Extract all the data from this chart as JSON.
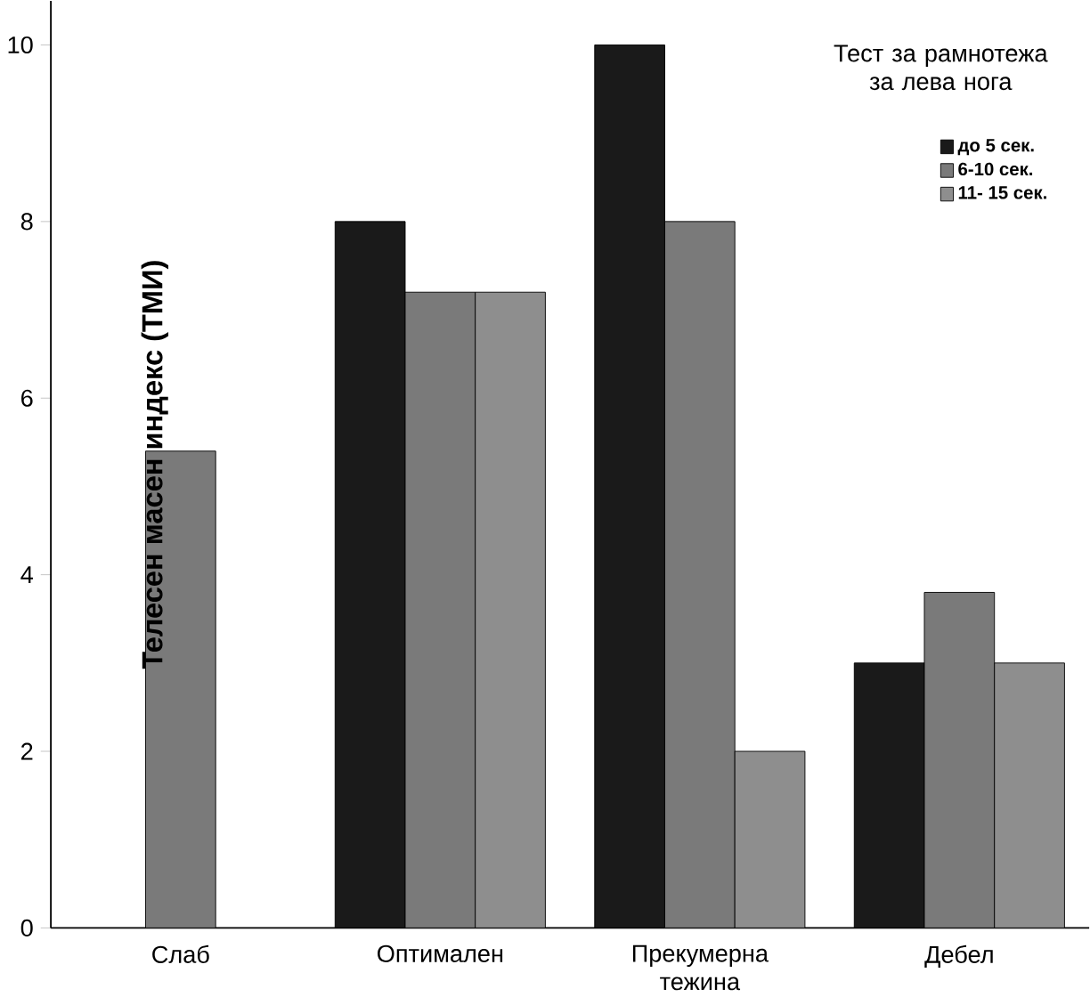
{
  "chart_data": {
    "type": "bar",
    "ylabel": "Телесен масен индекс (ТМИ)",
    "legend_title": "Тест за рамнотежа за лева нога",
    "categories": [
      "Слаб",
      "Оптимален",
      "Прекумерна тежина",
      "Дебел"
    ],
    "series": [
      {
        "name": "до 5 сек.",
        "color": "#1a1a1a",
        "values": [
          null,
          8,
          10,
          3.0
        ]
      },
      {
        "name": "6-10 сек.",
        "color": "#7a7a7a",
        "values": [
          5.4,
          7.2,
          8,
          3.8
        ]
      },
      {
        "name": "11- 15 сек.",
        "color": "#8e8e8e",
        "values": [
          null,
          7.2,
          2.0,
          3.0
        ]
      }
    ],
    "ylim": [
      0,
      10.5
    ],
    "yticks": [
      0,
      2,
      4,
      6,
      8,
      10
    ],
    "grid": false,
    "legend": "top right"
  }
}
